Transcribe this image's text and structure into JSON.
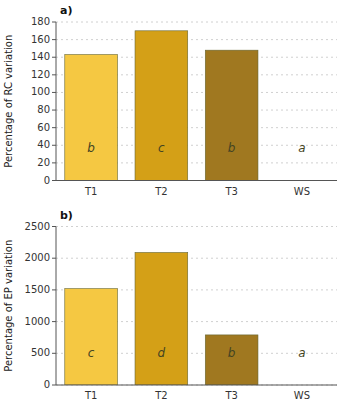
{
  "chart_data": [
    {
      "type": "bar",
      "title": "a)",
      "categories": [
        "T1",
        "T2",
        "T3",
        "WS"
      ],
      "values": [
        143,
        170,
        148,
        null
      ],
      "colors": [
        "#F5C842",
        "#D4A017",
        "#A07820",
        null
      ],
      "annotations": [
        "b",
        "c",
        "b",
        "a"
      ],
      "y_label": "Percentage of RC variation",
      "ylim": [
        0,
        180
      ],
      "yticks": [
        0,
        20,
        40,
        60,
        80,
        100,
        120,
        140,
        160,
        180
      ],
      "grid": true
    },
    {
      "type": "bar",
      "title": "b)",
      "categories": [
        "T1",
        "T2",
        "T3",
        "WS"
      ],
      "values": [
        1520,
        2090,
        790,
        null
      ],
      "colors": [
        "#F5C842",
        "#D4A017",
        "#A07820",
        null
      ],
      "annotations": [
        "c",
        "d",
        "b",
        "a"
      ],
      "y_label": "Percentage of EP variation",
      "ylim": [
        0,
        2500
      ],
      "yticks": [
        0,
        500,
        1000,
        1500,
        2000,
        2500
      ],
      "grid": true
    }
  ]
}
